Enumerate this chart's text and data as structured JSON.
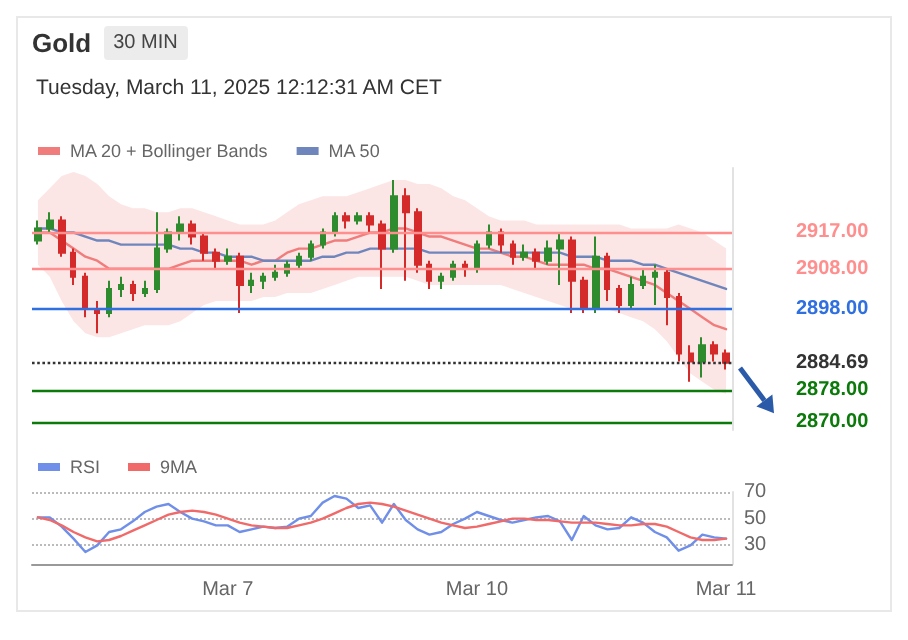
{
  "chart_data": [
    {
      "type": "candlestick",
      "title": "Gold",
      "subtitle": "Tuesday, March 11, 2025 12:12:31 AM CET",
      "annotations": [
        "30 MIN"
      ],
      "categories": [
        null,
        null,
        null,
        null,
        null,
        null,
        null,
        null,
        null,
        null,
        null,
        null,
        null,
        null,
        null,
        null,
        null,
        null,
        null,
        null,
        null,
        null,
        null,
        null,
        null,
        null,
        null,
        null,
        null,
        null,
        null,
        null,
        null,
        null,
        null,
        null,
        null,
        null,
        null,
        null,
        null,
        null,
        null,
        null,
        null,
        null,
        null,
        null,
        null,
        null,
        null,
        null,
        null,
        null,
        null,
        null,
        null,
        null,
        null
      ],
      "ohlc": [
        [
          2915,
          2920,
          2914,
          2918
        ],
        [
          2918,
          2922,
          2917,
          2920
        ],
        [
          2920,
          2921,
          2911,
          2912
        ],
        [
          2912,
          2913,
          2904,
          2906
        ],
        [
          2906,
          2907,
          2896,
          2898
        ],
        [
          2898,
          2900,
          2892,
          2897
        ],
        [
          2897,
          2905,
          2896,
          2903
        ],
        [
          2903,
          2906,
          2901,
          2904
        ],
        [
          2904,
          2905,
          2900,
          2902
        ],
        [
          2902,
          2905,
          2901,
          2903
        ],
        [
          2903,
          2922,
          2902,
          2913
        ],
        [
          2913,
          2918,
          2912,
          2917
        ],
        [
          2917,
          2921,
          2915,
          2919
        ],
        [
          2919,
          2920,
          2914,
          2916
        ],
        [
          2916,
          2917,
          2910,
          2912
        ],
        [
          2912,
          2913,
          2908,
          2910
        ],
        [
          2910,
          2913,
          2909,
          2911
        ],
        [
          2911,
          2912,
          2897,
          2904
        ],
        [
          2904,
          2907,
          2902,
          2905
        ],
        [
          2905,
          2907,
          2903,
          2906
        ],
        [
          2906,
          2909,
          2905,
          2907
        ],
        [
          2907,
          2910,
          2906,
          2909
        ],
        [
          2909,
          2912,
          2908,
          2911
        ],
        [
          2911,
          2915,
          2910,
          2914
        ],
        [
          2914,
          2918,
          2913,
          2917
        ],
        [
          2917,
          2922,
          2916,
          2921
        ],
        [
          2921,
          2922,
          2918,
          2920
        ],
        [
          2920,
          2922,
          2919,
          2921
        ],
        [
          2921,
          2922,
          2917,
          2919
        ],
        [
          2919,
          2920,
          2903,
          2913
        ],
        [
          2913,
          2930,
          2912,
          2926
        ],
        [
          2926,
          2928,
          2905,
          2922
        ],
        [
          2922,
          2923,
          2907,
          2909
        ],
        [
          2909,
          2910,
          2903,
          2905
        ],
        [
          2905,
          2907,
          2903,
          2906
        ],
        [
          2906,
          2910,
          2905,
          2909
        ],
        [
          2909,
          2910,
          2906,
          2908
        ],
        [
          2908,
          2915,
          2907,
          2914
        ],
        [
          2914,
          2919,
          2913,
          2917
        ],
        [
          2917,
          2918,
          2912,
          2914
        ],
        [
          2914,
          2915,
          2909,
          2911
        ],
        [
          2911,
          2914,
          2910,
          2912
        ],
        [
          2912,
          2913,
          2908,
          2910
        ],
        [
          2910,
          2915,
          2909,
          2913
        ],
        [
          2913,
          2917,
          2904,
          2915
        ],
        [
          2915,
          2916,
          2897,
          2905
        ],
        [
          2905,
          2906,
          2897,
          2898
        ],
        [
          2898,
          2916,
          2897,
          2911
        ],
        [
          2911,
          2912,
          2900,
          2903
        ],
        [
          2903,
          2904,
          2897,
          2899
        ],
        [
          2899,
          2906,
          2898,
          2904
        ],
        [
          2904,
          2908,
          2903,
          2906
        ],
        [
          2906,
          2909,
          2899,
          2907
        ],
        [
          2907,
          2908,
          2894,
          2901
        ],
        [
          2901,
          2902,
          2885,
          2887
        ],
        [
          2887,
          2889,
          2880,
          2885
        ],
        [
          2885,
          2891,
          2881,
          2889
        ],
        [
          2889,
          2890,
          2885,
          2887
        ],
        [
          2887,
          2888,
          2883,
          2884.69
        ]
      ],
      "series": [
        {
          "type": "line",
          "name": "MA 20 + Bollinger Bands",
          "color": "#f07c7c",
          "values": [
            2917,
            2917,
            2915,
            2913,
            2911,
            2910,
            2908,
            2908,
            2908,
            2908,
            2908,
            2908,
            2909,
            2910,
            2910,
            2910,
            2910,
            2910,
            2909,
            2910,
            2910,
            2912,
            2913,
            2913,
            2914,
            2915,
            2915,
            2916,
            2917,
            2917,
            2918,
            2918,
            2917,
            2916,
            2916,
            2915,
            2914,
            2913,
            2913,
            2912,
            2911,
            2911,
            2910,
            2909,
            2909,
            2909,
            2909,
            2908,
            2908,
            2907,
            2906,
            2905,
            2904,
            2902,
            2900,
            2898,
            2896,
            2894,
            2893
          ],
          "upper": [
            2925,
            2928,
            2931,
            2932,
            2931,
            2929,
            2926,
            2924,
            2923,
            2923,
            2922,
            2922,
            2923,
            2923,
            2922,
            2921,
            2920,
            2919,
            2919,
            2919,
            2920,
            2922,
            2924,
            2925,
            2926,
            2926,
            2926,
            2927,
            2928,
            2929,
            2930,
            2930,
            2929,
            2929,
            2928,
            2926,
            2925,
            2923,
            2921,
            2920,
            2920,
            2920,
            2919,
            2919,
            2919,
            2919,
            2919,
            2919,
            2919,
            2919,
            2918,
            2918,
            2918,
            2918,
            2919,
            2918,
            2917,
            2915,
            2913
          ],
          "lower": [
            2909,
            2906,
            2900,
            2895,
            2892,
            2891,
            2891,
            2892,
            2893,
            2894,
            2894,
            2894,
            2895,
            2897,
            2899,
            2900,
            2900,
            2900,
            2900,
            2901,
            2901,
            2902,
            2902,
            2902,
            2903,
            2904,
            2905,
            2906,
            2906,
            2906,
            2906,
            2906,
            2905,
            2904,
            2904,
            2904,
            2904,
            2904,
            2904,
            2904,
            2903,
            2902,
            2901,
            2900,
            2899,
            2898,
            2898,
            2898,
            2898,
            2897,
            2896,
            2895,
            2893,
            2890,
            2886,
            2882,
            2880,
            2878,
            2877
          ]
        },
        {
          "type": "line",
          "name": "MA 50",
          "color": "#6f86bd",
          "values": [
            2918,
            2918,
            2917,
            2917,
            2916,
            2915,
            2915,
            2914,
            2914,
            2914,
            2914,
            2914,
            2913,
            2913,
            2912,
            2912,
            2911,
            2911,
            2911,
            2910,
            2910,
            2910,
            2910,
            2910,
            2911,
            2911,
            2912,
            2912,
            2913,
            2913,
            2913,
            2913,
            2913,
            2912,
            2912,
            2912,
            2912,
            2912,
            2912,
            2912,
            2912,
            2912,
            2912,
            2912,
            2912,
            2911,
            2911,
            2911,
            2910,
            2910,
            2910,
            2909,
            2909,
            2908,
            2907,
            2906,
            2905,
            2904,
            2903
          ]
        }
      ],
      "ylim": [
        2868,
        2933
      ],
      "yticks": [
        {
          "value": 2917,
          "label": "2917.00"
        },
        {
          "value": 2908,
          "label": "2908.00"
        },
        {
          "value": 2898,
          "label": "2898.00"
        },
        {
          "value": 2884.69,
          "label": "2884.69"
        },
        {
          "value": 2878,
          "label": "2878.00"
        },
        {
          "value": 2870,
          "label": "2870.00"
        }
      ],
      "ref_lines": [
        {
          "axis": "y",
          "value": 2917,
          "color": "#ff8f8f"
        },
        {
          "axis": "y",
          "value": 2908,
          "color": "#ff8f8f"
        },
        {
          "axis": "y",
          "value": 2898,
          "color": "#2f6fe0"
        },
        {
          "axis": "y",
          "value": 2884.69,
          "color": "#333333",
          "line_style": "dotted"
        },
        {
          "axis": "y",
          "value": 2878,
          "color": "#0b7a0b"
        },
        {
          "axis": "y",
          "value": 2870,
          "color": "#0b7a0b"
        }
      ],
      "legend": "top left",
      "tick_labels": "y",
      "marker": "none"
    },
    {
      "type": "line",
      "categories": [
        null,
        null,
        null,
        null,
        null,
        null,
        null,
        null,
        null,
        null,
        null,
        null,
        null,
        null,
        null,
        null,
        "Mar 7",
        null,
        null,
        null,
        null,
        null,
        null,
        null,
        null,
        null,
        null,
        null,
        null,
        null,
        null,
        null,
        null,
        null,
        null,
        null,
        null,
        "Mar 10",
        null,
        null,
        null,
        null,
        null,
        null,
        null,
        null,
        null,
        null,
        null,
        null,
        null,
        null,
        null,
        null,
        null,
        null,
        null,
        null,
        "Mar 11"
      ],
      "series": [
        {
          "name": "RSI",
          "color": "#6f8fe8",
          "values": [
            51,
            51,
            44,
            35,
            25,
            30,
            40,
            42,
            48,
            55,
            59,
            61,
            55,
            50,
            48,
            45,
            45,
            40,
            42,
            44,
            43,
            44,
            50,
            52,
            62,
            67,
            65,
            58,
            60,
            47,
            61,
            49,
            42,
            38,
            40,
            46,
            50,
            55,
            52,
            49,
            47,
            49,
            51,
            52,
            48,
            34,
            52,
            45,
            42,
            43,
            51,
            47,
            40,
            36,
            26,
            30,
            38,
            36,
            35
          ]
        },
        {
          "name": "9MA",
          "color": "#f06a6a",
          "values": [
            51,
            49,
            45,
            40,
            36,
            33,
            34,
            37,
            41,
            45,
            49,
            53,
            55,
            56,
            55,
            53,
            50,
            47,
            45,
            44,
            43,
            43,
            45,
            47,
            50,
            54,
            58,
            61,
            62,
            61,
            59,
            56,
            53,
            50,
            47,
            45,
            43,
            44,
            46,
            48,
            50,
            50,
            49,
            49,
            48,
            47,
            47,
            47,
            46,
            45,
            45,
            46,
            46,
            44,
            40,
            36,
            34,
            34,
            35
          ]
        }
      ],
      "ylim": [
        16,
        70
      ],
      "yticks": [
        30,
        50,
        70
      ],
      "grid": "y",
      "legend": "top left",
      "marker": "none"
    }
  ]
}
